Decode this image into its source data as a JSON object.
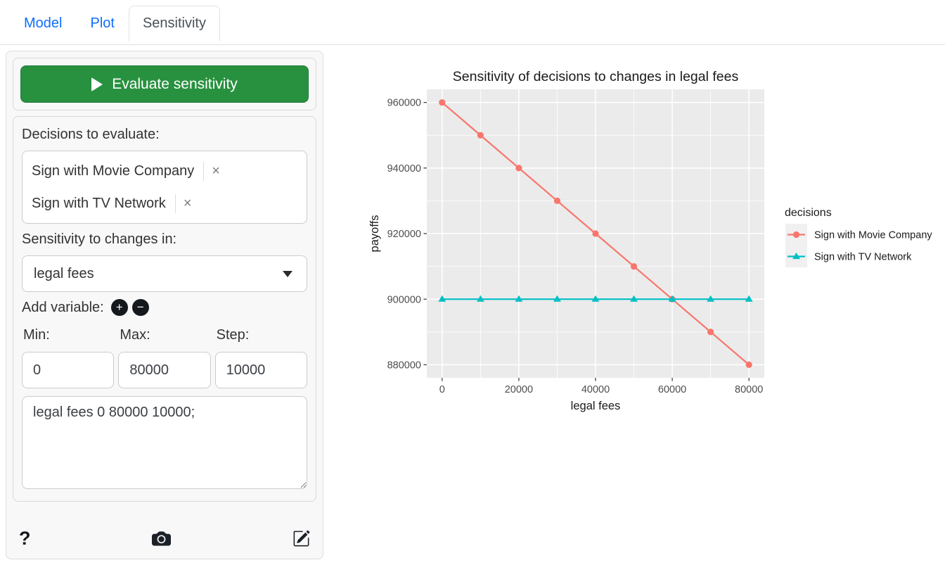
{
  "header": {
    "tabs": [
      {
        "id": "model",
        "label": "Model",
        "active": false
      },
      {
        "id": "plot",
        "label": "Plot",
        "active": false
      },
      {
        "id": "sensitivity",
        "label": "Sensitivity",
        "active": true
      }
    ]
  },
  "sidebar": {
    "evaluate_button_label": "Evaluate sensitivity",
    "decisions_label": "Decisions to evaluate:",
    "decisions": [
      "Sign with Movie Company",
      "Sign with TV Network"
    ],
    "sensitivity_label": "Sensitivity to changes in:",
    "variable_selected": "legal fees",
    "add_variable_label": "Add variable:",
    "min_label": "Min:",
    "max_label": "Max:",
    "step_label": "Step:",
    "min_value": "0",
    "max_value": "80000",
    "step_value": "10000",
    "ranges_value": "legal fees 0 80000 10000;"
  },
  "icons": {
    "play_glyph": "▶",
    "add_glyph": "+",
    "subtract_glyph": "−",
    "remove_glyph": "×",
    "help_glyph": "?"
  },
  "colors": {
    "tab_link": "#0d6efd",
    "button_green": "#28913F",
    "series_red": "#F8766D",
    "series_teal": "#00BFC4"
  },
  "chart_data": {
    "type": "line",
    "title": "Sensitivity of decisions to changes in legal fees",
    "xlabel": "legal fees",
    "ylabel": "payoffs",
    "legend_title": "decisions",
    "legend_position": "right",
    "grid": true,
    "panel_bg": "#EBEBEB",
    "grid_color": "#FFFFFF",
    "legend_key_bg": "#F0F0F0",
    "tick_label_color": "#4D4D4D",
    "x": [
      0,
      10000,
      20000,
      30000,
      40000,
      50000,
      60000,
      70000,
      80000
    ],
    "series": [
      {
        "name": "Sign with Movie Company",
        "color": "#F8766D",
        "marker": "circle",
        "values": [
          960000,
          950000,
          940000,
          930000,
          920000,
          910000,
          900000,
          890000,
          880000
        ]
      },
      {
        "name": "Sign with TV Network",
        "color": "#00BFC4",
        "marker": "triangle",
        "values": [
          900000,
          900000,
          900000,
          900000,
          900000,
          900000,
          900000,
          900000,
          900000
        ]
      }
    ],
    "xticks": [
      0,
      20000,
      40000,
      60000,
      80000
    ],
    "yticks": [
      880000,
      900000,
      920000,
      940000,
      960000
    ],
    "xlim": [
      -4000,
      84000
    ],
    "ylim": [
      876000,
      964000
    ]
  }
}
